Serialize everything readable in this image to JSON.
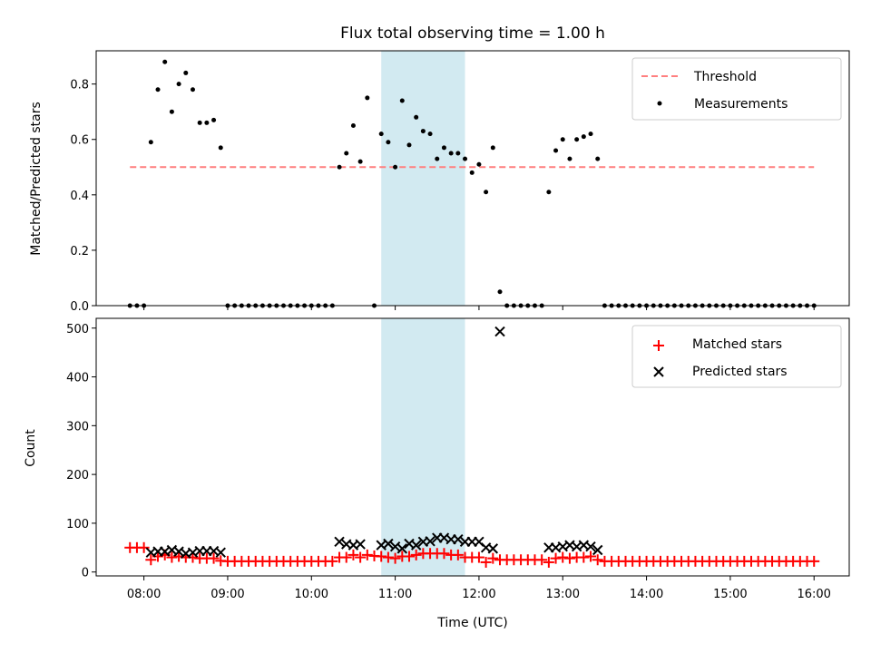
{
  "chart_data": [
    {
      "type": "scatter",
      "title": "Flux total observing time = 1.00 h",
      "xlabel": "",
      "ylabel": "Matched/Predicted stars",
      "ylim": [
        0,
        0.92
      ],
      "y_ticks": [
        "0.0",
        "0.2",
        "0.4",
        "0.6",
        "0.8"
      ],
      "x_range_hours": [
        7.43,
        16.42
      ],
      "highlight_span": {
        "start": "10:50",
        "end": "11:50",
        "color": "#ADD8E6"
      },
      "legend": {
        "placement": "top-right",
        "entries": [
          "Threshold",
          "Measurements"
        ]
      },
      "series": [
        {
          "name": "Threshold",
          "kind": "dashed-line",
          "color": "#FF7F7F",
          "x": [
            "07:50",
            "16:00"
          ],
          "y": [
            0.5,
            0.5
          ]
        },
        {
          "name": "Measurements",
          "kind": "points",
          "color": "#000000",
          "points": [
            [
              "07:50",
              0.0
            ],
            [
              "07:55",
              0.0
            ],
            [
              "08:00",
              0.0
            ],
            [
              "08:05",
              0.59
            ],
            [
              "08:10",
              0.78
            ],
            [
              "08:15",
              0.88
            ],
            [
              "08:20",
              0.7
            ],
            [
              "08:25",
              0.8
            ],
            [
              "08:30",
              0.84
            ],
            [
              "08:35",
              0.78
            ],
            [
              "08:40",
              0.66
            ],
            [
              "08:45",
              0.66
            ],
            [
              "08:50",
              0.67
            ],
            [
              "08:55",
              0.57
            ],
            [
              "09:00",
              0.0
            ],
            [
              "09:05",
              0.0
            ],
            [
              "09:10",
              0.0
            ],
            [
              "09:15",
              0.0
            ],
            [
              "09:20",
              0.0
            ],
            [
              "09:25",
              0.0
            ],
            [
              "09:30",
              0.0
            ],
            [
              "09:35",
              0.0
            ],
            [
              "09:40",
              0.0
            ],
            [
              "09:45",
              0.0
            ],
            [
              "09:50",
              0.0
            ],
            [
              "09:55",
              0.0
            ],
            [
              "10:00",
              0.0
            ],
            [
              "10:05",
              0.0
            ],
            [
              "10:10",
              0.0
            ],
            [
              "10:15",
              0.0
            ],
            [
              "10:20",
              0.5
            ],
            [
              "10:25",
              0.55
            ],
            [
              "10:30",
              0.65
            ],
            [
              "10:35",
              0.52
            ],
            [
              "10:40",
              0.75
            ],
            [
              "10:45",
              0.0
            ],
            [
              "10:50",
              0.62
            ],
            [
              "10:55",
              0.59
            ],
            [
              "11:00",
              0.5
            ],
            [
              "11:05",
              0.74
            ],
            [
              "11:10",
              0.58
            ],
            [
              "11:15",
              0.68
            ],
            [
              "11:20",
              0.63
            ],
            [
              "11:25",
              0.62
            ],
            [
              "11:30",
              0.53
            ],
            [
              "11:35",
              0.57
            ],
            [
              "11:40",
              0.55
            ],
            [
              "11:45",
              0.55
            ],
            [
              "11:50",
              0.53
            ],
            [
              "11:55",
              0.48
            ],
            [
              "12:00",
              0.51
            ],
            [
              "12:05",
              0.41
            ],
            [
              "12:10",
              0.57
            ],
            [
              "12:15",
              0.05
            ],
            [
              "12:20",
              0.0
            ],
            [
              "12:25",
              0.0
            ],
            [
              "12:30",
              0.0
            ],
            [
              "12:35",
              0.0
            ],
            [
              "12:40",
              0.0
            ],
            [
              "12:45",
              0.0
            ],
            [
              "12:50",
              0.41
            ],
            [
              "12:55",
              0.56
            ],
            [
              "13:00",
              0.6
            ],
            [
              "13:05",
              0.53
            ],
            [
              "13:10",
              0.6
            ],
            [
              "13:15",
              0.61
            ],
            [
              "13:20",
              0.62
            ],
            [
              "13:25",
              0.53
            ],
            [
              "13:30",
              0.0
            ],
            [
              "13:35",
              0.0
            ],
            [
              "13:40",
              0.0
            ],
            [
              "13:45",
              0.0
            ],
            [
              "13:50",
              0.0
            ],
            [
              "13:55",
              0.0
            ],
            [
              "14:00",
              0.0
            ],
            [
              "14:05",
              0.0
            ],
            [
              "14:10",
              0.0
            ],
            [
              "14:15",
              0.0
            ],
            [
              "14:20",
              0.0
            ],
            [
              "14:25",
              0.0
            ],
            [
              "14:30",
              0.0
            ],
            [
              "14:35",
              0.0
            ],
            [
              "14:40",
              0.0
            ],
            [
              "14:45",
              0.0
            ],
            [
              "14:50",
              0.0
            ],
            [
              "14:55",
              0.0
            ],
            [
              "15:00",
              0.0
            ],
            [
              "15:05",
              0.0
            ],
            [
              "15:10",
              0.0
            ],
            [
              "15:15",
              0.0
            ],
            [
              "15:20",
              0.0
            ],
            [
              "15:25",
              0.0
            ],
            [
              "15:30",
              0.0
            ],
            [
              "15:35",
              0.0
            ],
            [
              "15:40",
              0.0
            ],
            [
              "15:45",
              0.0
            ],
            [
              "15:50",
              0.0
            ],
            [
              "15:55",
              0.0
            ],
            [
              "16:00",
              0.0
            ]
          ]
        }
      ]
    },
    {
      "type": "scatter",
      "title": "",
      "xlabel": "Time (UTC)",
      "ylabel": "Count",
      "ylim": [
        -8,
        520
      ],
      "y_ticks": [
        "0",
        "100",
        "200",
        "300",
        "400",
        "500"
      ],
      "x_ticks": [
        "08:00",
        "09:00",
        "10:00",
        "11:00",
        "12:00",
        "13:00",
        "14:00",
        "15:00",
        "16:00"
      ],
      "x_range_hours": [
        7.43,
        16.42
      ],
      "highlight_span": {
        "start": "10:50",
        "end": "11:50",
        "color": "#ADD8E6"
      },
      "legend": {
        "placement": "top-right",
        "entries": [
          "Matched stars",
          "Predicted stars"
        ]
      },
      "series": [
        {
          "name": "Matched stars",
          "marker": "plus",
          "color": "#FF0000",
          "points": [
            [
              "07:50",
              50
            ],
            [
              "07:55",
              50
            ],
            [
              "08:00",
              50
            ],
            [
              "08:05",
              25
            ],
            [
              "08:10",
              32
            ],
            [
              "08:15",
              35
            ],
            [
              "08:20",
              30
            ],
            [
              "08:25",
              32
            ],
            [
              "08:30",
              30
            ],
            [
              "08:35",
              30
            ],
            [
              "08:40",
              28
            ],
            [
              "08:45",
              28
            ],
            [
              "08:50",
              28
            ],
            [
              "08:55",
              23
            ],
            [
              "09:00",
              22
            ],
            [
              "09:05",
              22
            ],
            [
              "09:10",
              22
            ],
            [
              "09:15",
              22
            ],
            [
              "09:20",
              22
            ],
            [
              "09:25",
              22
            ],
            [
              "09:30",
              22
            ],
            [
              "09:35",
              22
            ],
            [
              "09:40",
              22
            ],
            [
              "09:45",
              22
            ],
            [
              "09:50",
              22
            ],
            [
              "09:55",
              22
            ],
            [
              "10:00",
              22
            ],
            [
              "10:05",
              22
            ],
            [
              "10:10",
              22
            ],
            [
              "10:15",
              22
            ],
            [
              "10:20",
              30
            ],
            [
              "10:25",
              30
            ],
            [
              "10:30",
              35
            ],
            [
              "10:35",
              30
            ],
            [
              "10:40",
              35
            ],
            [
              "10:45",
              33
            ],
            [
              "10:50",
              32
            ],
            [
              "10:55",
              30
            ],
            [
              "11:00",
              28
            ],
            [
              "11:05",
              32
            ],
            [
              "11:10",
              32
            ],
            [
              "11:15",
              35
            ],
            [
              "11:20",
              38
            ],
            [
              "11:25",
              38
            ],
            [
              "11:30",
              38
            ],
            [
              "11:35",
              38
            ],
            [
              "11:40",
              35
            ],
            [
              "11:45",
              35
            ],
            [
              "11:50",
              30
            ],
            [
              "11:55",
              30
            ],
            [
              "12:00",
              30
            ],
            [
              "12:05",
              20
            ],
            [
              "12:10",
              28
            ],
            [
              "12:15",
              25
            ],
            [
              "12:20",
              25
            ],
            [
              "12:25",
              25
            ],
            [
              "12:30",
              25
            ],
            [
              "12:35",
              25
            ],
            [
              "12:40",
              25
            ],
            [
              "12:45",
              25
            ],
            [
              "12:50",
              20
            ],
            [
              "12:55",
              28
            ],
            [
              "13:00",
              30
            ],
            [
              "13:05",
              28
            ],
            [
              "13:10",
              30
            ],
            [
              "13:15",
              30
            ],
            [
              "13:20",
              32
            ],
            [
              "13:25",
              25
            ],
            [
              "13:30",
              22
            ],
            [
              "13:35",
              22
            ],
            [
              "13:40",
              22
            ],
            [
              "13:45",
              22
            ],
            [
              "13:50",
              22
            ],
            [
              "13:55",
              22
            ],
            [
              "14:00",
              22
            ],
            [
              "14:05",
              22
            ],
            [
              "14:10",
              22
            ],
            [
              "14:15",
              22
            ],
            [
              "14:20",
              22
            ],
            [
              "14:25",
              22
            ],
            [
              "14:30",
              22
            ],
            [
              "14:35",
              22
            ],
            [
              "14:40",
              22
            ],
            [
              "14:45",
              22
            ],
            [
              "14:50",
              22
            ],
            [
              "14:55",
              22
            ],
            [
              "15:00",
              22
            ],
            [
              "15:05",
              22
            ],
            [
              "15:10",
              22
            ],
            [
              "15:15",
              22
            ],
            [
              "15:20",
              22
            ],
            [
              "15:25",
              22
            ],
            [
              "15:30",
              22
            ],
            [
              "15:35",
              22
            ],
            [
              "15:40",
              22
            ],
            [
              "15:45",
              22
            ],
            [
              "15:50",
              22
            ],
            [
              "15:55",
              22
            ],
            [
              "16:00",
              22
            ]
          ]
        },
        {
          "name": "Predicted stars",
          "marker": "x",
          "color": "#000000",
          "points": [
            [
              "08:05",
              40
            ],
            [
              "08:10",
              42
            ],
            [
              "08:15",
              42
            ],
            [
              "08:20",
              45
            ],
            [
              "08:25",
              42
            ],
            [
              "08:30",
              38
            ],
            [
              "08:35",
              40
            ],
            [
              "08:40",
              43
            ],
            [
              "08:45",
              43
            ],
            [
              "08:50",
              43
            ],
            [
              "08:55",
              40
            ],
            [
              "10:20",
              62
            ],
            [
              "10:25",
              57
            ],
            [
              "10:30",
              55
            ],
            [
              "10:35",
              57
            ],
            [
              "10:50",
              55
            ],
            [
              "10:55",
              58
            ],
            [
              "11:00",
              52
            ],
            [
              "11:05",
              48
            ],
            [
              "11:10",
              58
            ],
            [
              "11:15",
              55
            ],
            [
              "11:20",
              62
            ],
            [
              "11:25",
              63
            ],
            [
              "11:30",
              70
            ],
            [
              "11:35",
              70
            ],
            [
              "11:40",
              67
            ],
            [
              "11:45",
              67
            ],
            [
              "11:50",
              62
            ],
            [
              "11:55",
              62
            ],
            [
              "12:00",
              62
            ],
            [
              "12:05",
              50
            ],
            [
              "12:10",
              48
            ],
            [
              "12:15",
              493
            ],
            [
              "12:50",
              50
            ],
            [
              "12:55",
              50
            ],
            [
              "13:00",
              52
            ],
            [
              "13:05",
              55
            ],
            [
              "13:10",
              52
            ],
            [
              "13:15",
              55
            ],
            [
              "13:20",
              52
            ],
            [
              "13:25",
              45
            ]
          ]
        }
      ]
    }
  ]
}
